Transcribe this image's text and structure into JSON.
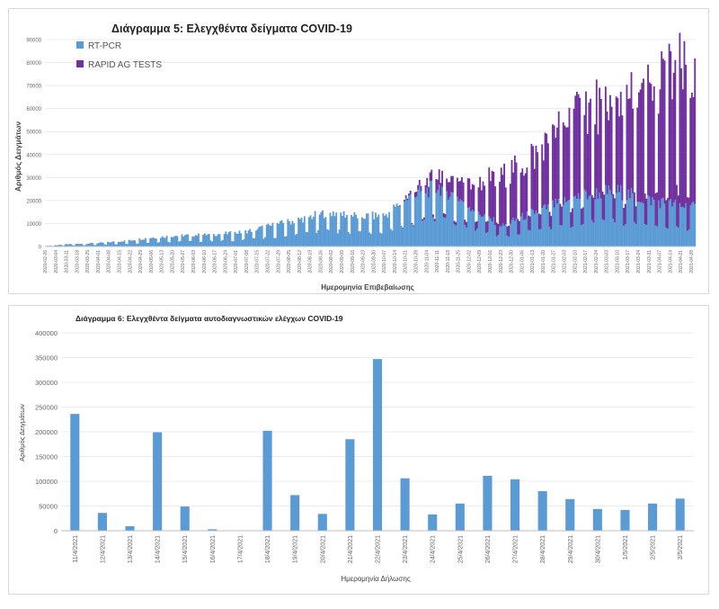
{
  "chart_data": [
    {
      "type": "bar",
      "stacked": true,
      "title": "Διάγραμμα 5: Ελεγχθέντα δείγματα COVID-19",
      "xlabel": "Ημερομηνία Επιβεβαίωσης",
      "ylabel": "Αριθμός Δειγμάτων",
      "ylim": [
        0,
        90000
      ],
      "yticks": [
        0,
        10000,
        20000,
        30000,
        40000,
        50000,
        60000,
        70000,
        80000,
        90000
      ],
      "legend": "top-left",
      "xtick_labels": [
        "2020-02-26",
        "2020-03-04",
        "2020-03-11",
        "2020-03-18",
        "2020-03-25",
        "2020-04-01",
        "2020-04-08",
        "2020-04-15",
        "2020-04-22",
        "2020-04-29",
        "2020-05-06",
        "2020-05-13",
        "2020-05-20",
        "2020-05-27",
        "2020-06-03",
        "2020-06-10",
        "2020-06-17",
        "2020-06-24",
        "2020-07-01",
        "2020-07-08",
        "2020-07-15",
        "2020-07-22",
        "2020-07-29",
        "2020-08-05",
        "2020-08-12",
        "2020-08-19",
        "2020-08-26",
        "2020-09-02",
        "2020-09-09",
        "2020-09-16",
        "2020-09-23",
        "2020-09-30",
        "2020-10-07",
        "2020-10-14",
        "2020-10-21",
        "2020-10-28",
        "2020-11-04",
        "2020-11-11",
        "2020-11-18",
        "2020-11-25",
        "2020-12-02",
        "2020-12-09",
        "2020-12-16",
        "2020-12-23",
        "2020-12-30",
        "2021-01-06",
        "2021-01-13",
        "2021-01-20",
        "2021-01-27",
        "2021-02-03",
        "2021-02-10",
        "2021-02-17",
        "2021-02-24",
        "2021-03-03",
        "2021-03-10",
        "2021-03-17",
        "2021-03-24",
        "2021-03-31",
        "2021-04-07",
        "2021-04-14",
        "2021-04-21",
        "2021-04-28"
      ],
      "series": [
        {
          "name": "RT-PCR",
          "color": "#5b9bd5",
          "anchors": [
            [
              "2020-02-26",
              200
            ],
            [
              "2020-03-10",
              900
            ],
            [
              "2020-04-01",
              1500
            ],
            [
              "2020-04-20",
              2500
            ],
            [
              "2020-05-05",
              3800
            ],
            [
              "2020-05-25",
              4800
            ],
            [
              "2020-06-15",
              5200
            ],
            [
              "2020-07-05",
              6200
            ],
            [
              "2020-07-20",
              8500
            ],
            [
              "2020-08-10",
              11500
            ],
            [
              "2020-08-31",
              15000
            ],
            [
              "2020-09-21",
              13000
            ],
            [
              "2020-10-07",
              13500
            ],
            [
              "2020-10-20",
              20000
            ],
            [
              "2020-11-01",
              24000
            ],
            [
              "2020-11-12",
              26000
            ],
            [
              "2020-11-25",
              21000
            ],
            [
              "2020-12-10",
              14000
            ],
            [
              "2020-12-24",
              9000
            ],
            [
              "2021-01-10",
              14000
            ],
            [
              "2021-02-01",
              19000
            ],
            [
              "2021-02-20",
              23000
            ],
            [
              "2021-03-10",
              24000
            ],
            [
              "2021-03-25",
              21000
            ],
            [
              "2021-04-10",
              19000
            ],
            [
              "2021-04-30",
              17000
            ]
          ]
        },
        {
          "name": "RAPID AG TESTS",
          "color": "#7030a0",
          "anchors": [
            [
              "2020-10-15",
              0
            ],
            [
              "2020-10-28",
              2000
            ],
            [
              "2020-11-10",
              5000
            ],
            [
              "2020-11-25",
              8000
            ],
            [
              "2020-12-10",
              15000
            ],
            [
              "2020-12-24",
              22000
            ],
            [
              "2021-01-10",
              24000
            ],
            [
              "2021-01-25",
              29000
            ],
            [
              "2021-02-05",
              36000
            ],
            [
              "2021-02-20",
              40000
            ],
            [
              "2021-03-05",
              38000
            ],
            [
              "2021-03-20",
              42000
            ],
            [
              "2021-04-05",
              52000
            ],
            [
              "2021-04-20",
              60000
            ],
            [
              "2021-04-30",
              55000
            ]
          ]
        }
      ]
    },
    {
      "type": "bar",
      "title": "Διάγραμμα 6: Ελεγχθέντα δείγματα αυτοδιαγνωστικών ελέγχων COVID-19",
      "xlabel": "Ημερομηνία Δήλωσης",
      "ylabel": "Αριθμός Δειγμάτων",
      "ylim": [
        0,
        400000
      ],
      "yticks": [
        0,
        50000,
        100000,
        150000,
        200000,
        250000,
        300000,
        350000,
        400000
      ],
      "color": "#5b9bd5",
      "categories": [
        "11/4/2021",
        "12/4/2021",
        "13/4/2021",
        "14/4/2021",
        "15/4/2021",
        "16/4/2021",
        "17/4/2021",
        "18/4/2021",
        "19/4/2021",
        "20/4/2021",
        "21/4/2021",
        "22/4/2021",
        "23/4/2021",
        "24/4/2021",
        "25/4/2021",
        "26/4/2021",
        "27/4/2021",
        "28/4/2021",
        "29/4/2021",
        "30/4/2021",
        "1/5/2021",
        "2/5/2021",
        "3/5/2021"
      ],
      "values": [
        236000,
        36000,
        9000,
        199000,
        49000,
        3000,
        0,
        202000,
        72000,
        34000,
        185000,
        347000,
        106000,
        33000,
        55000,
        111000,
        104000,
        80000,
        64000,
        44000,
        42000,
        55000,
        65000
      ]
    }
  ]
}
